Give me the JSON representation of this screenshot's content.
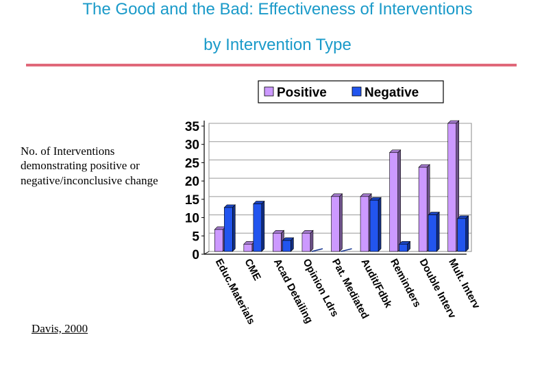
{
  "header": {
    "title_line1": "The Good and the Bad: Effectiveness of Interventions",
    "title_line2": "by Intervention Type"
  },
  "side_label": "No. of Interventions demonstrating positive or negative/inconclusive change",
  "source": "Davis, 2000",
  "colors": {
    "title": "#1a9ac9",
    "rule": "#e0687a",
    "positive": "#cc99ff",
    "negative": "#2255ee"
  },
  "chart_data": {
    "type": "bar",
    "title": "",
    "xlabel": "",
    "ylabel": "",
    "categories": [
      "Educ.Materials",
      "CME",
      "Acad Detailing",
      "Opinion Ldrs",
      "Pat. Mediated",
      "Audit/Fdbk",
      "Reminders",
      "Double Interv",
      "Mult. Interv"
    ],
    "series": [
      {
        "name": "Positive",
        "values": [
          6,
          2,
          5,
          5,
          15,
          15,
          27,
          23,
          35
        ]
      },
      {
        "name": "Negative",
        "values": [
          12,
          13,
          3,
          0,
          0,
          14,
          2,
          10,
          9
        ]
      }
    ],
    "ylim": [
      0,
      35
    ],
    "yticks": [
      0,
      5,
      10,
      15,
      20,
      25,
      30,
      35
    ],
    "grid": true,
    "legend": "top"
  }
}
